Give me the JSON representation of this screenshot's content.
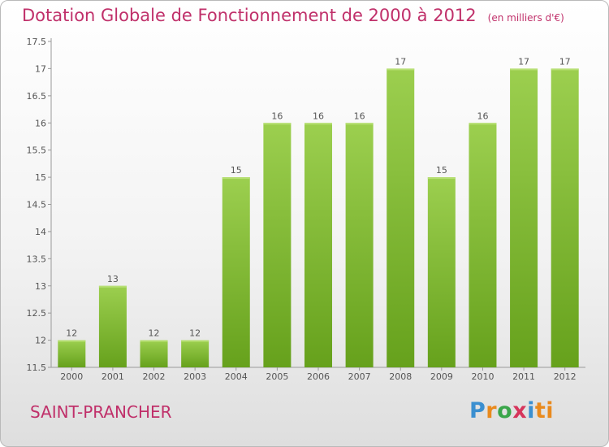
{
  "chart_data": {
    "type": "bar",
    "title": "Dotation Globale de Fonctionnement de 2000 à 2012",
    "unit_note": "(en milliers d'€)",
    "categories": [
      "2000",
      "2001",
      "2002",
      "2003",
      "2004",
      "2005",
      "2006",
      "2007",
      "2008",
      "2009",
      "2010",
      "2011",
      "2012"
    ],
    "values": [
      12,
      13,
      12,
      12,
      15,
      16,
      16,
      16,
      17,
      15,
      16,
      17,
      17
    ],
    "value_labels": [
      "12",
      "13",
      "12",
      "12",
      "15",
      "16",
      "16",
      "16",
      "17",
      "15",
      "16",
      "17",
      "17"
    ],
    "ylim": [
      11.5,
      17.5
    ],
    "yticks": [
      "11.5",
      "12",
      "12.5",
      "13",
      "13.5",
      "14",
      "14.5",
      "15",
      "15.5",
      "16",
      "16.5",
      "17",
      "17.5"
    ],
    "grid": false,
    "bar_color": "#8cc63f"
  },
  "footer": {
    "city": "SAINT-PRANCHER",
    "logo_letters": [
      "P",
      "r",
      "o",
      "x",
      "i",
      "ti"
    ]
  }
}
